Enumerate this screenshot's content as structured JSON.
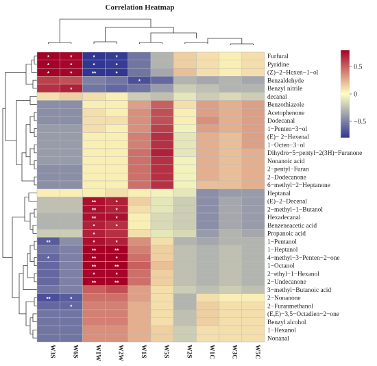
{
  "chart_data": {
    "type": "heatmap",
    "title": "Correlation Heatmap",
    "columns": [
      "W3S",
      "W6S",
      "W1W",
      "W2W",
      "W1S",
      "W5S",
      "W2S",
      "W1C",
      "W3C",
      "W5C"
    ],
    "rows": [
      "Furfural",
      "Pyridine",
      "(Z)−2−Hexen−1−ol",
      "Benzaldehyde",
      "Benzyl nitrile",
      "decanal",
      "Benzothiazole",
      "Acetophenone",
      "Dodecanal",
      "1−Penten−3−ol",
      "(E)− 2−Hexenal",
      "1−Octen−3−ol",
      "Dihydro−5−pentyl−2(3H)−Furanone",
      "Nonanoic acid",
      "2−pentyl−Furan",
      "2−Dodecanone",
      "6−methyl−2−Heptanone",
      "Heptanal",
      "(E)−2−Decenal",
      "2−methyl−1−Butanol",
      "Hexadecanal",
      "Benzeneacetic acid",
      "Propanoic acid",
      "1−Pentanol",
      "1−Heptanol",
      "4−methyl−3−Penten−2−one",
      "1−Octanol",
      "2−ethyl−1−Hexanol",
      "2−Undecanone",
      "3−methyl−Butanoic acid",
      "2−Nonanone",
      "2−Furanmethanol",
      "(E,E)−3,5−Octadien−2−one",
      "Benzyl alcohol",
      "1−Hexanol",
      "Nonanal"
    ],
    "values": [
      [
        0.8,
        0.78,
        -0.8,
        -0.78,
        -0.55,
        -0.3,
        0.15,
        0.1,
        0.05,
        0.1
      ],
      [
        0.8,
        0.78,
        -0.8,
        -0.78,
        -0.55,
        -0.3,
        0.15,
        0.1,
        0.05,
        0.1
      ],
      [
        0.8,
        0.78,
        -0.82,
        -0.8,
        -0.55,
        -0.35,
        0.2,
        0.1,
        0.05,
        0.1
      ],
      [
        0.6,
        0.55,
        -0.5,
        -0.55,
        -0.7,
        -0.6,
        -0.3,
        -0.35,
        -0.3,
        -0.35
      ],
      [
        0.65,
        0.7,
        -0.55,
        -0.6,
        -0.55,
        -0.4,
        -0.2,
        -0.25,
        -0.3,
        -0.3
      ],
      [
        0.1,
        0.15,
        0.1,
        0.05,
        -0.2,
        -0.25,
        -0.1,
        -0.2,
        -0.15,
        -0.2
      ],
      [
        -0.45,
        -0.45,
        0.05,
        0.05,
        0.3,
        0.5,
        0.1,
        0.3,
        0.25,
        0.3
      ],
      [
        -0.45,
        -0.45,
        0.1,
        0.05,
        0.35,
        0.55,
        0.05,
        0.3,
        0.25,
        0.3
      ],
      [
        -0.45,
        -0.45,
        0.1,
        0.1,
        0.35,
        0.55,
        0.05,
        0.35,
        0.25,
        0.3
      ],
      [
        -0.4,
        -0.4,
        0.1,
        0.05,
        0.35,
        0.6,
        -0.05,
        0.3,
        0.25,
        0.3
      ],
      [
        -0.4,
        -0.4,
        0.05,
        0.05,
        0.4,
        0.65,
        -0.1,
        0.25,
        0.2,
        0.3
      ],
      [
        -0.4,
        -0.4,
        0.05,
        0.05,
        0.4,
        0.65,
        -0.1,
        0.25,
        0.2,
        0.3
      ],
      [
        -0.4,
        -0.4,
        0.05,
        0.05,
        0.45,
        0.7,
        -0.1,
        0.25,
        0.2,
        0.25
      ],
      [
        -0.4,
        -0.4,
        0.05,
        0.05,
        0.45,
        0.65,
        -0.05,
        0.25,
        0.2,
        0.25
      ],
      [
        -0.45,
        -0.45,
        0.05,
        0.05,
        0.45,
        0.65,
        -0.05,
        0.25,
        0.2,
        0.25
      ],
      [
        -0.45,
        -0.45,
        0.05,
        0.05,
        0.45,
        0.65,
        -0.05,
        0.25,
        0.2,
        0.25
      ],
      [
        -0.45,
        -0.45,
        0.05,
        0.05,
        0.45,
        0.65,
        -0.05,
        0.2,
        0.2,
        0.25
      ],
      [
        0.05,
        0.05,
        0.05,
        0.1,
        0.05,
        -0.05,
        -0.1,
        -0.45,
        -0.4,
        -0.4
      ],
      [
        -0.25,
        -0.25,
        0.75,
        0.7,
        0.15,
        -0.1,
        -0.2,
        -0.45,
        -0.35,
        -0.4
      ],
      [
        -0.25,
        -0.25,
        0.75,
        0.7,
        0.1,
        -0.1,
        -0.2,
        -0.45,
        -0.35,
        -0.4
      ],
      [
        -0.3,
        -0.3,
        0.75,
        0.75,
        0.05,
        -0.15,
        -0.2,
        -0.45,
        -0.35,
        -0.4
      ],
      [
        -0.3,
        -0.3,
        0.7,
        0.65,
        0.05,
        -0.15,
        -0.2,
        -0.45,
        -0.35,
        -0.4
      ],
      [
        -0.2,
        -0.2,
        0.7,
        0.65,
        0.1,
        -0.1,
        -0.15,
        -0.4,
        -0.3,
        -0.35
      ],
      [
        -0.65,
        -0.45,
        0.75,
        0.7,
        0.35,
        0.1,
        -0.3,
        -0.35,
        -0.3,
        -0.3
      ],
      [
        -0.55,
        -0.5,
        0.8,
        0.8,
        0.4,
        0.15,
        -0.25,
        -0.3,
        -0.25,
        -0.3
      ],
      [
        -0.6,
        -0.5,
        0.8,
        0.8,
        0.45,
        0.15,
        -0.25,
        -0.3,
        -0.25,
        -0.3
      ],
      [
        -0.6,
        -0.5,
        0.8,
        0.8,
        0.5,
        0.2,
        -0.25,
        -0.3,
        -0.25,
        -0.3
      ],
      [
        -0.6,
        -0.5,
        0.78,
        0.78,
        0.45,
        0.15,
        -0.25,
        -0.3,
        -0.25,
        -0.3
      ],
      [
        -0.6,
        -0.5,
        0.82,
        0.82,
        0.45,
        0.15,
        -0.25,
        -0.3,
        -0.25,
        -0.3
      ],
      [
        -0.55,
        -0.5,
        0.5,
        0.55,
        0.3,
        0.1,
        -0.2,
        -0.25,
        -0.2,
        -0.25
      ],
      [
        -0.7,
        -0.65,
        0.45,
        0.45,
        0.3,
        0.1,
        -0.3,
        0.1,
        0.05,
        0.05
      ],
      [
        -0.6,
        -0.6,
        0.4,
        0.4,
        0.25,
        0.1,
        -0.3,
        0.15,
        0.1,
        0.1
      ],
      [
        -0.55,
        -0.55,
        0.4,
        0.4,
        0.25,
        0.1,
        -0.25,
        0.15,
        0.1,
        0.1
      ],
      [
        -0.55,
        -0.55,
        0.4,
        0.4,
        0.25,
        0.1,
        -0.25,
        0.15,
        0.1,
        0.1
      ],
      [
        -0.55,
        -0.55,
        0.35,
        0.35,
        0.25,
        0.15,
        -0.2,
        0.1,
        0.1,
        0.1
      ],
      [
        -0.55,
        -0.55,
        0.35,
        0.35,
        0.25,
        0.15,
        -0.2,
        0.1,
        0.1,
        0.1
      ]
    ],
    "significance": [
      [
        "*",
        "*",
        "*",
        "*",
        "",
        "",
        "",
        "",
        "",
        ""
      ],
      [
        "*",
        "*",
        "*",
        "*",
        "",
        "",
        "",
        "",
        "",
        ""
      ],
      [
        "*",
        "*",
        "**",
        "*",
        "",
        "",
        "",
        "",
        "",
        ""
      ],
      [
        "",
        "",
        "",
        "",
        "*",
        "",
        "",
        "",
        "",
        ""
      ],
      [
        "",
        "*",
        "",
        "",
        "",
        "",
        "",
        "",
        "",
        ""
      ],
      [
        "",
        "",
        "",
        "",
        "",
        "",
        "",
        "",
        "",
        ""
      ],
      [
        "",
        "",
        "",
        "",
        "",
        "",
        "",
        "",
        "",
        ""
      ],
      [
        "",
        "",
        "",
        "",
        "",
        "",
        "",
        "",
        "",
        ""
      ],
      [
        "",
        "",
        "",
        "",
        "",
        "",
        "",
        "",
        "",
        ""
      ],
      [
        "",
        "",
        "",
        "",
        "",
        "",
        "",
        "",
        "",
        ""
      ],
      [
        "",
        "",
        "",
        "",
        "",
        "",
        "",
        "",
        "",
        ""
      ],
      [
        "",
        "",
        "",
        "",
        "",
        "",
        "",
        "",
        "",
        ""
      ],
      [
        "",
        "",
        "",
        "",
        "",
        "",
        "",
        "",
        "",
        ""
      ],
      [
        "",
        "",
        "",
        "",
        "",
        "",
        "",
        "",
        "",
        ""
      ],
      [
        "",
        "",
        "",
        "",
        "",
        "",
        "",
        "",
        "",
        ""
      ],
      [
        "",
        "",
        "",
        "",
        "",
        "",
        "",
        "",
        "",
        ""
      ],
      [
        "",
        "",
        "",
        "",
        "",
        "",
        "",
        "",
        "",
        ""
      ],
      [
        "",
        "",
        "",
        "",
        "",
        "",
        "",
        "",
        "",
        ""
      ],
      [
        "",
        "",
        "**",
        "*",
        "",
        "",
        "",
        "",
        "",
        ""
      ],
      [
        "",
        "",
        "**",
        "*",
        "",
        "",
        "",
        "",
        "",
        ""
      ],
      [
        "",
        "",
        "**",
        "*",
        "",
        "",
        "",
        "",
        "",
        ""
      ],
      [
        "",
        "",
        "*",
        "*",
        "",
        "",
        "",
        "",
        "",
        ""
      ],
      [
        "",
        "",
        "*",
        "",
        "",
        "",
        "",
        "",
        "",
        ""
      ],
      [
        "**",
        "",
        "*",
        "*",
        "",
        "",
        "",
        "",
        "",
        ""
      ],
      [
        "",
        "",
        "**",
        "**",
        "",
        "",
        "",
        "",
        "",
        ""
      ],
      [
        "*",
        "",
        "**",
        "*",
        "",
        "",
        "",
        "",
        "",
        ""
      ],
      [
        "",
        "",
        "**",
        "**",
        "",
        "",
        "",
        "",
        "",
        ""
      ],
      [
        "",
        "",
        "*",
        "*",
        "",
        "",
        "",
        "",
        "",
        ""
      ],
      [
        "",
        "",
        "**",
        "**",
        "",
        "",
        "",
        "",
        "",
        ""
      ],
      [
        "",
        "",
        "",
        "",
        "",
        "",
        "",
        "",
        "",
        ""
      ],
      [
        "**",
        "*",
        "",
        "",
        "",
        "",
        "",
        "",
        "",
        ""
      ],
      [
        "",
        "*",
        "",
        "",
        "",
        "",
        "",
        "",
        "",
        ""
      ],
      [
        "",
        "",
        "",
        "",
        "",
        "",
        "",
        "",
        "",
        ""
      ],
      [
        "",
        "",
        "",
        "",
        "",
        "",
        "",
        "",
        "",
        ""
      ],
      [
        "",
        "",
        "",
        "",
        "",
        "",
        "",
        "",
        "",
        ""
      ],
      [
        "",
        "",
        "",
        "",
        "",
        "",
        "",
        "",
        "",
        ""
      ]
    ],
    "color_scale": {
      "min": -0.8,
      "max": 0.8,
      "low_color": "#313695",
      "mid_color": "#ffffbf",
      "high_color": "#a50026",
      "ticks": [
        0.5,
        0,
        -0.5
      ],
      "tick_labels": [
        "0.5",
        "0",
        "−0.5"
      ]
    },
    "row_dendrogram": true,
    "column_dendrogram": true
  }
}
